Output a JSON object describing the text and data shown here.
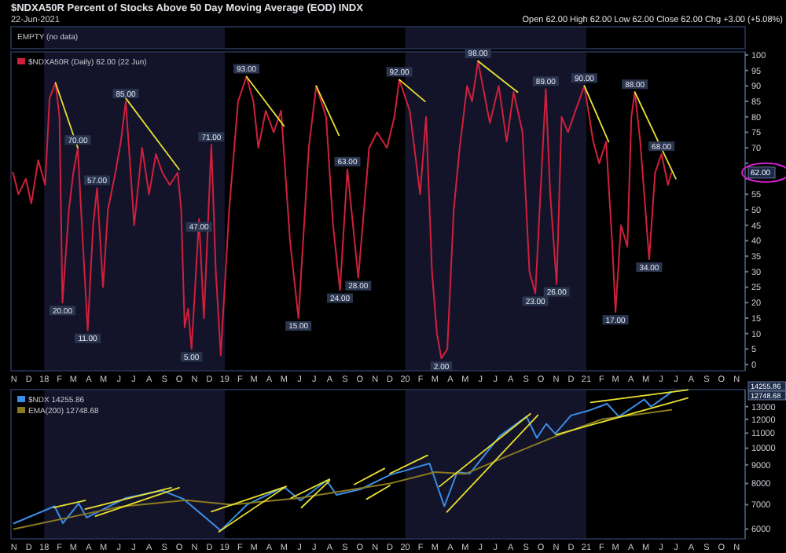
{
  "chart_data": [
    {
      "type": "line",
      "title": "$NDXA50R Percent of Stocks Above 50 Day Moving Average (EOD) INDX",
      "subtitle": "22-Jun-2021",
      "annotations": [
        "Open 62.00  High 62.00  Low 62.00  Close 62.00  Chg +3.00 (+5.08%)",
        "EMPTY (no data)",
        {
          "text": "20.00",
          "x": "2018-02-07",
          "y": 20
        },
        {
          "text": "70.00",
          "x": "2018-03-10",
          "y": 70
        },
        {
          "text": "11.00",
          "x": "2018-03-30",
          "y": 11
        },
        {
          "text": "57.00",
          "x": "2018-04-18",
          "y": 57
        },
        {
          "text": "85.00",
          "x": "2018-06-15",
          "y": 85
        },
        {
          "text": "5.00",
          "x": "2018-10-26",
          "y": 5
        },
        {
          "text": "47.00",
          "x": "2018-11-10",
          "y": 47
        },
        {
          "text": "71.00",
          "x": "2018-12-05",
          "y": 71
        },
        {
          "text": "93.00",
          "x": "2019-02-14",
          "y": 93
        },
        {
          "text": "15.00",
          "x": "2019-05-30",
          "y": 15
        },
        {
          "text": "24.00",
          "x": "2019-08-22",
          "y": 24
        },
        {
          "text": "63.00",
          "x": "2019-09-06",
          "y": 63
        },
        {
          "text": "28.00",
          "x": "2019-09-28",
          "y": 28
        },
        {
          "text": "92.00",
          "x": "2019-12-20",
          "y": 92
        },
        {
          "text": "2.00",
          "x": "2020-03-14",
          "y": 2
        },
        {
          "text": "98.00",
          "x": "2020-05-27",
          "y": 98
        },
        {
          "text": "23.00",
          "x": "2020-09-20",
          "y": 23
        },
        {
          "text": "89.00",
          "x": "2020-10-11",
          "y": 89
        },
        {
          "text": "26.00",
          "x": "2020-11-02",
          "y": 26
        },
        {
          "text": "90.00",
          "x": "2020-12-28",
          "y": 90
        },
        {
          "text": "17.00",
          "x": "2021-03-01",
          "y": 17
        },
        {
          "text": "88.00",
          "x": "2021-04-09",
          "y": 88
        },
        {
          "text": "34.00",
          "x": "2021-05-08",
          "y": 34
        },
        {
          "text": "68.00",
          "x": "2021-06-02",
          "y": 68
        },
        {
          "text": "62.00",
          "y": 62
        }
      ],
      "xlim": [
        "2017-10-26",
        "2021-11-18"
      ],
      "ylim": [
        -2,
        101
      ],
      "xticks": [
        {
          "value": "2017-11-01",
          "label": "N"
        },
        {
          "value": "2017-12-01",
          "label": "D"
        },
        {
          "value": "2018-01-01",
          "label": "18"
        },
        {
          "value": "2018-02-01",
          "label": "F"
        },
        {
          "value": "2018-03-01",
          "label": "M"
        },
        {
          "value": "2018-04-01",
          "label": "A"
        },
        {
          "value": "2018-05-01",
          "label": "M"
        },
        {
          "value": "2018-06-01",
          "label": "J"
        },
        {
          "value": "2018-07-01",
          "label": "J"
        },
        {
          "value": "2018-08-01",
          "label": "A"
        },
        {
          "value": "2018-09-01",
          "label": "S"
        },
        {
          "value": "2018-10-01",
          "label": "O"
        },
        {
          "value": "2018-11-01",
          "label": "N"
        },
        {
          "value": "2018-12-01",
          "label": "D"
        },
        {
          "value": "2019-01-01",
          "label": "19"
        },
        {
          "value": "2019-02-01",
          "label": "F"
        },
        {
          "value": "2019-03-01",
          "label": "M"
        },
        {
          "value": "2019-04-01",
          "label": "A"
        },
        {
          "value": "2019-05-01",
          "label": "M"
        },
        {
          "value": "2019-06-01",
          "label": "J"
        },
        {
          "value": "2019-07-01",
          "label": "J"
        },
        {
          "value": "2019-08-01",
          "label": "A"
        },
        {
          "value": "2019-09-01",
          "label": "S"
        },
        {
          "value": "2019-10-01",
          "label": "O"
        },
        {
          "value": "2019-11-01",
          "label": "N"
        },
        {
          "value": "2019-12-01",
          "label": "D"
        },
        {
          "value": "2020-01-01",
          "label": "20"
        },
        {
          "value": "2020-02-01",
          "label": "F"
        },
        {
          "value": "2020-03-01",
          "label": "M"
        },
        {
          "value": "2020-04-01",
          "label": "A"
        },
        {
          "value": "2020-05-01",
          "label": "M"
        },
        {
          "value": "2020-06-01",
          "label": "J"
        },
        {
          "value": "2020-07-01",
          "label": "J"
        },
        {
          "value": "2020-08-01",
          "label": "A"
        },
        {
          "value": "2020-09-01",
          "label": "S"
        },
        {
          "value": "2020-10-01",
          "label": "O"
        },
        {
          "value": "2020-11-01",
          "label": "N"
        },
        {
          "value": "2020-12-01",
          "label": "D"
        },
        {
          "value": "2021-01-01",
          "label": "21"
        },
        {
          "value": "2021-02-01",
          "label": "F"
        },
        {
          "value": "2021-03-01",
          "label": "M"
        },
        {
          "value": "2021-04-01",
          "label": "A"
        },
        {
          "value": "2021-05-01",
          "label": "M"
        },
        {
          "value": "2021-06-01",
          "label": "J"
        },
        {
          "value": "2021-07-01",
          "label": "J"
        },
        {
          "value": "2021-08-01",
          "label": "A"
        },
        {
          "value": "2021-09-01",
          "label": "S"
        },
        {
          "value": "2021-10-01",
          "label": "O"
        },
        {
          "value": "2021-11-01",
          "label": "N"
        }
      ],
      "yticks": [
        0,
        5,
        10,
        15,
        20,
        25,
        30,
        35,
        40,
        45,
        50,
        55,
        {
          "value": 60,
          "label": null
        },
        {
          "value": 65,
          "label": null
        },
        70,
        75,
        80,
        85,
        90,
        95,
        100
      ],
      "bands": [
        {
          "axis": "x",
          "from": "2018-01-01",
          "to": "2019-01-01",
          "color": "#13142a"
        },
        {
          "axis": "x",
          "from": "2020-01-01",
          "to": "2021-01-01",
          "color": "#13142a"
        }
      ],
      "legend": "top left",
      "series": [
        {
          "name": "$NDXA50R (Daily) 62.00 (22 Jun)",
          "color": "#d0203c",
          "x": [
            "2017-10-30",
            "2017-11-10",
            "2017-11-25",
            "2017-12-06",
            "2017-12-20",
            "2018-01-03",
            "2018-01-12",
            "2018-01-24",
            "2018-02-01",
            "2018-02-07",
            "2018-02-20",
            "2018-03-01",
            "2018-03-10",
            "2018-03-20",
            "2018-03-30",
            "2018-04-10",
            "2018-04-18",
            "2018-04-30",
            "2018-05-10",
            "2018-05-25",
            "2018-06-05",
            "2018-06-15",
            "2018-07-02",
            "2018-07-18",
            "2018-08-01",
            "2018-08-15",
            "2018-08-28",
            "2018-09-12",
            "2018-09-28",
            "2018-10-05",
            "2018-10-12",
            "2018-10-19",
            "2018-10-26",
            "2018-11-10",
            "2018-11-20",
            "2018-12-05",
            "2018-12-14",
            "2018-12-24",
            "2019-01-10",
            "2019-01-28",
            "2019-02-14",
            "2019-02-28",
            "2019-03-10",
            "2019-03-25",
            "2019-04-10",
            "2019-04-25",
            "2019-05-13",
            "2019-05-30",
            "2019-06-20",
            "2019-07-05",
            "2019-07-25",
            "2019-08-08",
            "2019-08-22",
            "2019-09-06",
            "2019-09-28",
            "2019-10-20",
            "2019-11-05",
            "2019-11-25",
            "2019-12-10",
            "2019-12-20",
            "2020-01-10",
            "2020-01-31",
            "2020-02-12",
            "2020-02-24",
            "2020-03-05",
            "2020-03-14",
            "2020-03-26",
            "2020-04-08",
            "2020-04-20",
            "2020-05-05",
            "2020-05-15",
            "2020-05-27",
            "2020-06-20",
            "2020-07-08",
            "2020-07-24",
            "2020-08-07",
            "2020-08-25",
            "2020-09-08",
            "2020-09-20",
            "2020-10-11",
            "2020-10-20",
            "2020-11-02",
            "2020-11-12",
            "2020-11-25",
            "2020-12-10",
            "2020-12-28",
            "2021-01-15",
            "2021-01-27",
            "2021-02-10",
            "2021-02-22",
            "2021-03-01",
            "2021-03-12",
            "2021-03-25",
            "2021-04-02",
            "2021-04-09",
            "2021-04-20",
            "2021-05-08",
            "2021-05-20",
            "2021-06-02",
            "2021-06-15",
            "2021-06-22"
          ],
          "values": [
            62,
            55,
            60,
            52,
            66,
            58,
            86,
            91,
            80,
            20,
            50,
            62,
            70,
            40,
            11,
            45,
            57,
            25,
            50,
            62,
            72,
            85,
            45,
            70,
            55,
            68,
            62,
            58,
            62,
            50,
            12,
            18,
            5,
            47,
            15,
            71,
            30,
            3,
            50,
            85,
            93,
            85,
            70,
            82,
            75,
            82,
            40,
            15,
            70,
            90,
            80,
            45,
            24,
            63,
            28,
            70,
            75,
            70,
            80,
            92,
            82,
            55,
            80,
            30,
            10,
            2,
            5,
            50,
            70,
            90,
            85,
            98,
            78,
            90,
            72,
            88,
            75,
            30,
            23,
            89,
            55,
            26,
            80,
            75,
            82,
            90,
            72,
            65,
            72,
            40,
            17,
            45,
            38,
            80,
            88,
            72,
            34,
            62,
            68,
            58,
            62
          ]
        },
        {
          "type": "line",
          "color": "#e8e030",
          "x": [
            "2018-01-24",
            "2018-03-10"
          ],
          "values": [
            91,
            70
          ]
        },
        {
          "type": "line",
          "color": "#e8e030",
          "x": [
            "2018-06-15",
            "2018-10-01"
          ],
          "values": [
            86,
            63
          ]
        },
        {
          "type": "line",
          "color": "#e8e030",
          "x": [
            "2019-02-14",
            "2019-05-01"
          ],
          "values": [
            93,
            77
          ]
        },
        {
          "type": "line",
          "color": "#e8e030",
          "x": [
            "2019-07-05",
            "2019-08-20"
          ],
          "values": [
            90,
            74
          ]
        },
        {
          "type": "line",
          "color": "#e8e030",
          "x": [
            "2019-12-20",
            "2020-02-10"
          ],
          "values": [
            92,
            85
          ]
        },
        {
          "type": "line",
          "color": "#e8e030",
          "x": [
            "2020-05-27",
            "2020-08-15"
          ],
          "values": [
            98,
            88
          ]
        },
        {
          "type": "line",
          "color": "#e8e030",
          "x": [
            "2020-12-28",
            "2021-02-15"
          ],
          "values": [
            90,
            72
          ]
        },
        {
          "type": "line",
          "color": "#e8e030",
          "x": [
            "2021-04-09",
            "2021-07-01"
          ],
          "values": [
            88,
            60
          ]
        }
      ]
    },
    {
      "type": "line",
      "log": true,
      "annotations": [
        "14255.86",
        "12748.68"
      ],
      "xlim": [
        "2017-10-26",
        "2021-11-18"
      ],
      "ylim": [
        5640,
        14480
      ],
      "xticks": [
        {
          "value": "2017-11-01",
          "label": "N"
        },
        {
          "value": "2017-12-01",
          "label": "D"
        },
        {
          "value": "2018-01-01",
          "label": "18"
        },
        {
          "value": "2018-02-01",
          "label": "F"
        },
        {
          "value": "2018-03-01",
          "label": "M"
        },
        {
          "value": "2018-04-01",
          "label": "A"
        },
        {
          "value": "2018-05-01",
          "label": "M"
        },
        {
          "value": "2018-06-01",
          "label": "J"
        },
        {
          "value": "2018-07-01",
          "label": "J"
        },
        {
          "value": "2018-08-01",
          "label": "A"
        },
        {
          "value": "2018-09-01",
          "label": "S"
        },
        {
          "value": "2018-10-01",
          "label": "O"
        },
        {
          "value": "2018-11-01",
          "label": "N"
        },
        {
          "value": "2018-12-01",
          "label": "D"
        },
        {
          "value": "2019-01-01",
          "label": "19"
        },
        {
          "value": "2019-02-01",
          "label": "F"
        },
        {
          "value": "2019-03-01",
          "label": "M"
        },
        {
          "value": "2019-04-01",
          "label": "A"
        },
        {
          "value": "2019-05-01",
          "label": "M"
        },
        {
          "value": "2019-06-01",
          "label": "J"
        },
        {
          "value": "2019-07-01",
          "label": "J"
        },
        {
          "value": "2019-08-01",
          "label": "A"
        },
        {
          "value": "2019-09-01",
          "label": "S"
        },
        {
          "value": "2019-10-01",
          "label": "O"
        },
        {
          "value": "2019-11-01",
          "label": "N"
        },
        {
          "value": "2019-12-01",
          "label": "D"
        },
        {
          "value": "2020-01-01",
          "label": "20"
        },
        {
          "value": "2020-02-01",
          "label": "F"
        },
        {
          "value": "2020-03-01",
          "label": "M"
        },
        {
          "value": "2020-04-01",
          "label": "A"
        },
        {
          "value": "2020-05-01",
          "label": "M"
        },
        {
          "value": "2020-06-01",
          "label": "J"
        },
        {
          "value": "2020-07-01",
          "label": "J"
        },
        {
          "value": "2020-08-01",
          "label": "A"
        },
        {
          "value": "2020-09-01",
          "label": "S"
        },
        {
          "value": "2020-10-01",
          "label": "O"
        },
        {
          "value": "2020-11-01",
          "label": "N"
        },
        {
          "value": "2020-12-01",
          "label": "D"
        },
        {
          "value": "2021-01-01",
          "label": "21"
        },
        {
          "value": "2021-02-01",
          "label": "F"
        },
        {
          "value": "2021-03-01",
          "label": "M"
        },
        {
          "value": "2021-04-01",
          "label": "A"
        },
        {
          "value": "2021-05-01",
          "label": "M"
        },
        {
          "value": "2021-06-01",
          "label": "J"
        },
        {
          "value": "2021-07-01",
          "label": "J"
        },
        {
          "value": "2021-08-01",
          "label": "A"
        },
        {
          "value": "2021-09-01",
          "label": "S"
        },
        {
          "value": "2021-10-01",
          "label": "O"
        },
        {
          "value": "2021-11-01",
          "label": "N"
        }
      ],
      "yticks": [
        6000,
        7000,
        8000,
        9000,
        10000,
        11000,
        12000,
        13000
      ],
      "bands": [
        {
          "axis": "x",
          "from": "2018-01-01",
          "to": "2019-01-01",
          "color": "#13142a"
        },
        {
          "axis": "x",
          "from": "2020-01-01",
          "to": "2021-01-01",
          "color": "#13142a"
        }
      ],
      "legend": "top left",
      "series": [
        {
          "name": "$NDX 14255.86",
          "color": "#3a8ee8",
          "x": [
            "2017-11-01",
            "2018-01-22",
            "2018-02-08",
            "2018-03-12",
            "2018-03-28",
            "2018-06-15",
            "2018-08-28",
            "2018-10-10",
            "2018-12-24",
            "2019-02-15",
            "2019-04-20",
            "2019-05-03",
            "2019-06-03",
            "2019-07-26",
            "2019-08-15",
            "2019-10-03",
            "2019-12-01",
            "2020-01-15",
            "2020-02-19",
            "2020-03-20",
            "2020-04-15",
            "2020-05-10",
            "2020-07-10",
            "2020-09-02",
            "2020-09-23",
            "2020-10-12",
            "2020-10-30",
            "2020-12-01",
            "2021-01-04",
            "2021-02-12",
            "2021-03-08",
            "2021-04-28",
            "2021-05-12",
            "2021-06-22"
          ],
          "values": [
            6220,
            6930,
            6230,
            7055,
            6450,
            7300,
            7650,
            7250,
            5945,
            7000,
            7700,
            7790,
            7185,
            8150,
            7450,
            7720,
            8445,
            8800,
            9080,
            6930,
            8600,
            8510,
            10800,
            12210,
            10670,
            11670,
            10960,
            12300,
            12660,
            13240,
            12210,
            13610,
            13000,
            14255.86
          ]
        },
        {
          "name": "EMA(200) 12748.68",
          "color": "#8a7a20",
          "x": [
            "2017-11-01",
            "2018-06-01",
            "2018-10-15",
            "2019-01-15",
            "2019-06-01",
            "2019-12-01",
            "2020-03-01",
            "2020-05-01",
            "2020-08-01",
            "2020-11-01",
            "2021-02-01",
            "2021-06-22"
          ],
          "values": [
            6000,
            6900,
            7200,
            7000,
            7300,
            8000,
            8600,
            8500,
            9600,
            10800,
            12000,
            12748.68
          ]
        },
        {
          "type": "line",
          "color": "#e8e030",
          "x": [
            "2018-01-20",
            "2018-03-25"
          ],
          "values": [
            6870,
            7185
          ]
        },
        {
          "type": "line",
          "color": "#e8e030",
          "x": [
            "2018-03-25",
            "2018-09-15"
          ],
          "values": [
            6810,
            7790
          ]
        },
        {
          "type": "line",
          "color": "#e8e030",
          "x": [
            "2018-04-15",
            "2018-10-01"
          ],
          "values": [
            6510,
            7790
          ]
        },
        {
          "type": "line",
          "color": "#e8e030",
          "x": [
            "2018-12-05",
            "2019-05-05"
          ],
          "values": [
            6700,
            7850
          ]
        },
        {
          "type": "line",
          "color": "#e8e030",
          "x": [
            "2018-12-20",
            "2019-05-05"
          ],
          "values": [
            5900,
            7850
          ]
        },
        {
          "type": "line",
          "color": "#e8e030",
          "x": [
            "2019-05-15",
            "2019-08-01"
          ],
          "values": [
            7300,
            8220
          ]
        },
        {
          "type": "line",
          "color": "#e8e030",
          "x": [
            "2019-06-05",
            "2019-08-01"
          ],
          "values": [
            6870,
            8150
          ]
        },
        {
          "type": "line",
          "color": "#e8e030",
          "x": [
            "2019-09-20",
            "2019-11-20"
          ],
          "values": [
            7950,
            8800
          ]
        },
        {
          "type": "line",
          "color": "#e8e030",
          "x": [
            "2019-10-15",
            "2019-12-01"
          ],
          "values": [
            7250,
            7900
          ]
        },
        {
          "type": "line",
          "color": "#e8e030",
          "x": [
            "2019-12-01",
            "2020-02-15"
          ],
          "values": [
            8520,
            9560
          ]
        },
        {
          "type": "line",
          "color": "#e8e030",
          "x": [
            "2020-03-10",
            "2020-09-10"
          ],
          "values": [
            7850,
            12430
          ]
        },
        {
          "type": "line",
          "color": "#e8e030",
          "x": [
            "2020-03-25",
            "2020-09-25"
          ],
          "values": [
            6680,
            12320
          ]
        },
        {
          "type": "line",
          "color": "#e8e030",
          "x": [
            "2021-01-10",
            "2021-07-25"
          ],
          "values": [
            13350,
            14460
          ]
        },
        {
          "type": "line",
          "color": "#e8e030",
          "x": [
            "2020-11-01",
            "2021-07-25"
          ],
          "values": [
            10890,
            13730
          ]
        }
      ]
    }
  ]
}
